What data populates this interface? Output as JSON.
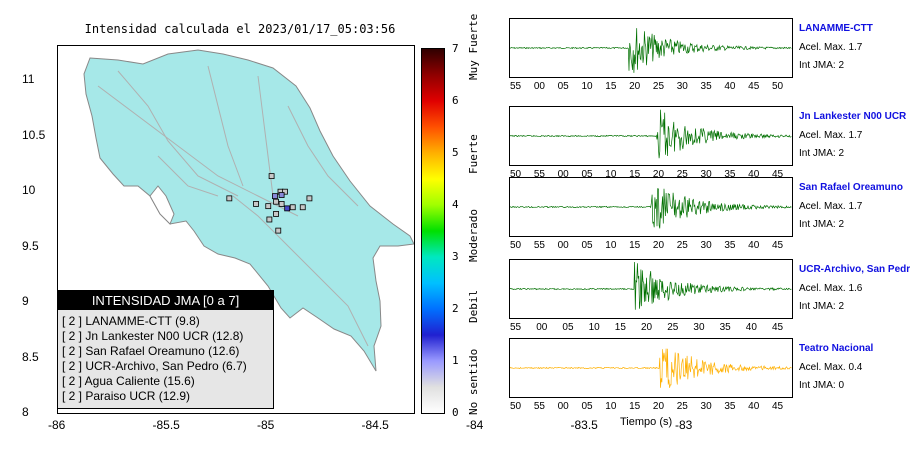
{
  "map": {
    "title": "Intensidad calculada el 2023/01/17_05:03:56",
    "x_ticks": [
      "-86",
      "-85.5",
      "-85",
      "-84.5",
      "-84",
      "-83.5",
      "-83"
    ],
    "y_ticks": [
      "11",
      "10.5",
      "10",
      "9.5",
      "9",
      "8.5",
      "8"
    ],
    "xlim": [
      -86,
      -82.8
    ],
    "ylim": [
      8,
      11.3
    ],
    "land_color": "#a6e8e8",
    "stations": [
      {
        "lon": -84.08,
        "lat": 10.13,
        "color": "#c8c8c8"
      },
      {
        "lon": -84.0,
        "lat": 9.99,
        "color": "#c8c8c8"
      },
      {
        "lon": -83.96,
        "lat": 9.99,
        "color": "#c8c8c8"
      },
      {
        "lon": -84.05,
        "lat": 9.95,
        "color": "#8888d8"
      },
      {
        "lon": -83.99,
        "lat": 9.96,
        "color": "#8888d8"
      },
      {
        "lon": -84.04,
        "lat": 9.9,
        "color": "#c8c8c8"
      },
      {
        "lon": -83.99,
        "lat": 9.88,
        "color": "#c8c8c8"
      },
      {
        "lon": -83.94,
        "lat": 9.84,
        "color": "#4848c8"
      },
      {
        "lon": -83.89,
        "lat": 9.85,
        "color": "#c8c8c8"
      },
      {
        "lon": -84.11,
        "lat": 9.86,
        "color": "#c8c8c8"
      },
      {
        "lon": -84.22,
        "lat": 9.88,
        "color": "#c8c8c8"
      },
      {
        "lon": -84.46,
        "lat": 9.93,
        "color": "#c8c8c8"
      },
      {
        "lon": -83.8,
        "lat": 9.85,
        "color": "#c8c8c8"
      },
      {
        "lon": -83.74,
        "lat": 9.93,
        "color": "#c8c8c8"
      },
      {
        "lon": -84.04,
        "lat": 9.79,
        "color": "#c8c8c8"
      },
      {
        "lon": -84.02,
        "lat": 9.64,
        "color": "#c8c8c8"
      },
      {
        "lon": -84.1,
        "lat": 9.74,
        "color": "#c8c8c8"
      }
    ]
  },
  "legend": {
    "title": "INTENSIDAD JMA [0 a 7]",
    "entries": [
      "[ 2 ]  LANAMME-CTT (9.8)",
      "[ 2 ]  Jn Lankester N00 UCR (12.8)",
      "[ 2 ]  San Rafael Oreamuno (12.6)",
      "[ 2 ]  UCR-Archivo, San Pedro (6.7)",
      "[ 2 ]  Agua Caliente (15.6)",
      "[ 2 ]  Paraiso UCR (12.9)"
    ]
  },
  "colorbar": {
    "ticks": [
      "7",
      "6",
      "5",
      "4",
      "3",
      "2",
      "1",
      "0"
    ],
    "categories": [
      "Muy Fuerte",
      "Fuerte",
      "Moderado",
      "Debil",
      "No sentido"
    ],
    "colors": [
      "#ffffff",
      "#e0e0e0",
      "#9a9aff",
      "#2020d0",
      "#0070ff",
      "#00c0ff",
      "#00e8c0",
      "#00e000",
      "#a0ff00",
      "#ffff00",
      "#ffb000",
      "#ff5000",
      "#e00000",
      "#900000",
      "#300000"
    ]
  },
  "traces": {
    "x_label": "Tiempo (s)",
    "green_color": "#007000",
    "yellow_color": "#ffb000",
    "items": [
      {
        "name": "LANAMME-CTT",
        "accel": "Acel. Max. 1.7",
        "jma": "Int JMA: 2",
        "ticks": [
          "55",
          "00",
          "05",
          "10",
          "15",
          "20",
          "25",
          "30",
          "35",
          "40",
          "45",
          "50"
        ],
        "onset": 0.42,
        "color": "green"
      },
      {
        "name": "Jn Lankester N00 UCR",
        "accel": "Acel. Max. 1.7",
        "jma": "Int JMA: 2",
        "ticks": [
          "50",
          "55",
          "00",
          "05",
          "10",
          "15",
          "20",
          "25",
          "30",
          "35",
          "40",
          "45"
        ],
        "onset": 0.52,
        "color": "green"
      },
      {
        "name": "San Rafael Oreamuno",
        "accel": "Acel. Max. 1.7",
        "jma": "Int JMA: 2",
        "ticks": [
          "50",
          "55",
          "00",
          "05",
          "10",
          "15",
          "20",
          "25",
          "30",
          "35",
          "40",
          "45"
        ],
        "onset": 0.5,
        "color": "green"
      },
      {
        "name": "UCR-Archivo, San Pedro",
        "accel": "Acel. Max. 1.6",
        "jma": "Int JMA: 2",
        "ticks": [
          "55",
          "00",
          "05",
          "10",
          "15",
          "20",
          "25",
          "30",
          "35",
          "40",
          "45"
        ],
        "onset": 0.44,
        "color": "green"
      },
      {
        "name": "Teatro Nacional",
        "accel": "Acel. Max. 0.4",
        "jma": "Int JMA: 0",
        "ticks": [
          "50",
          "55",
          "00",
          "05",
          "10",
          "15",
          "20",
          "25",
          "30",
          "35",
          "40",
          "45"
        ],
        "onset": 0.53,
        "color": "yellow"
      }
    ]
  }
}
